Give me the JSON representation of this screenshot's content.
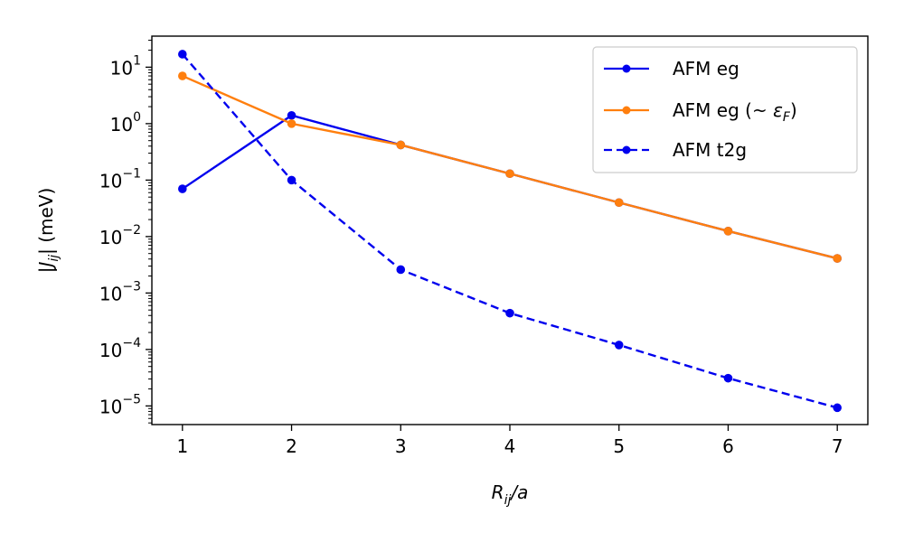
{
  "chart_data": {
    "type": "line",
    "xlabel_main": "R",
    "xlabel_sub": "ij",
    "xlabel_tail": "/a",
    "ylabel_pre": "|J",
    "ylabel_sub": "ij",
    "ylabel_post": "| (meV)",
    "x": [
      1,
      2,
      3,
      4,
      5,
      6,
      7
    ],
    "xlim": [
      0.72,
      7.28
    ],
    "ylim_log10": [
      -5.33,
      1.55
    ],
    "yscale": "log",
    "x_ticks": [
      "1",
      "2",
      "3",
      "4",
      "5",
      "6",
      "7"
    ],
    "y_ticks": [
      {
        "exp": 1,
        "base": "10",
        "power": "1"
      },
      {
        "exp": 0,
        "base": "10",
        "power": "0"
      },
      {
        "exp": -1,
        "base": "10",
        "power": "−1"
      },
      {
        "exp": -2,
        "base": "10",
        "power": "−2"
      },
      {
        "exp": -3,
        "base": "10",
        "power": "−3"
      },
      {
        "exp": -4,
        "base": "10",
        "power": "−4"
      },
      {
        "exp": -5,
        "base": "10",
        "power": "−5"
      }
    ],
    "grid": false,
    "legend_position": "top-right",
    "series": [
      {
        "name": "AFM eg",
        "label_main": "AFM eg",
        "label_sym": "",
        "label_sub": "",
        "label_end": "",
        "color": "#0000ee",
        "dash": "solid",
        "values": [
          0.07,
          1.4,
          0.42,
          0.13,
          0.04,
          0.0125,
          0.0041
        ]
      },
      {
        "name": "AFM eg (~ εF)",
        "label_main": "AFM eg (~ ",
        "label_sym": "ε",
        "label_sub": "F",
        "label_end": ")",
        "color": "#ff7f0e",
        "dash": "solid",
        "values": [
          7.0,
          1.0,
          0.42,
          0.13,
          0.04,
          0.0125,
          0.0041
        ]
      },
      {
        "name": "AFM t2g",
        "label_main": "AFM t2g",
        "label_sym": "",
        "label_sub": "",
        "label_end": "",
        "color": "#0000ee",
        "dash": "dashed",
        "values": [
          17.0,
          0.1,
          0.0026,
          0.00044,
          0.00012,
          3.1e-05,
          9.3e-06
        ]
      }
    ]
  }
}
